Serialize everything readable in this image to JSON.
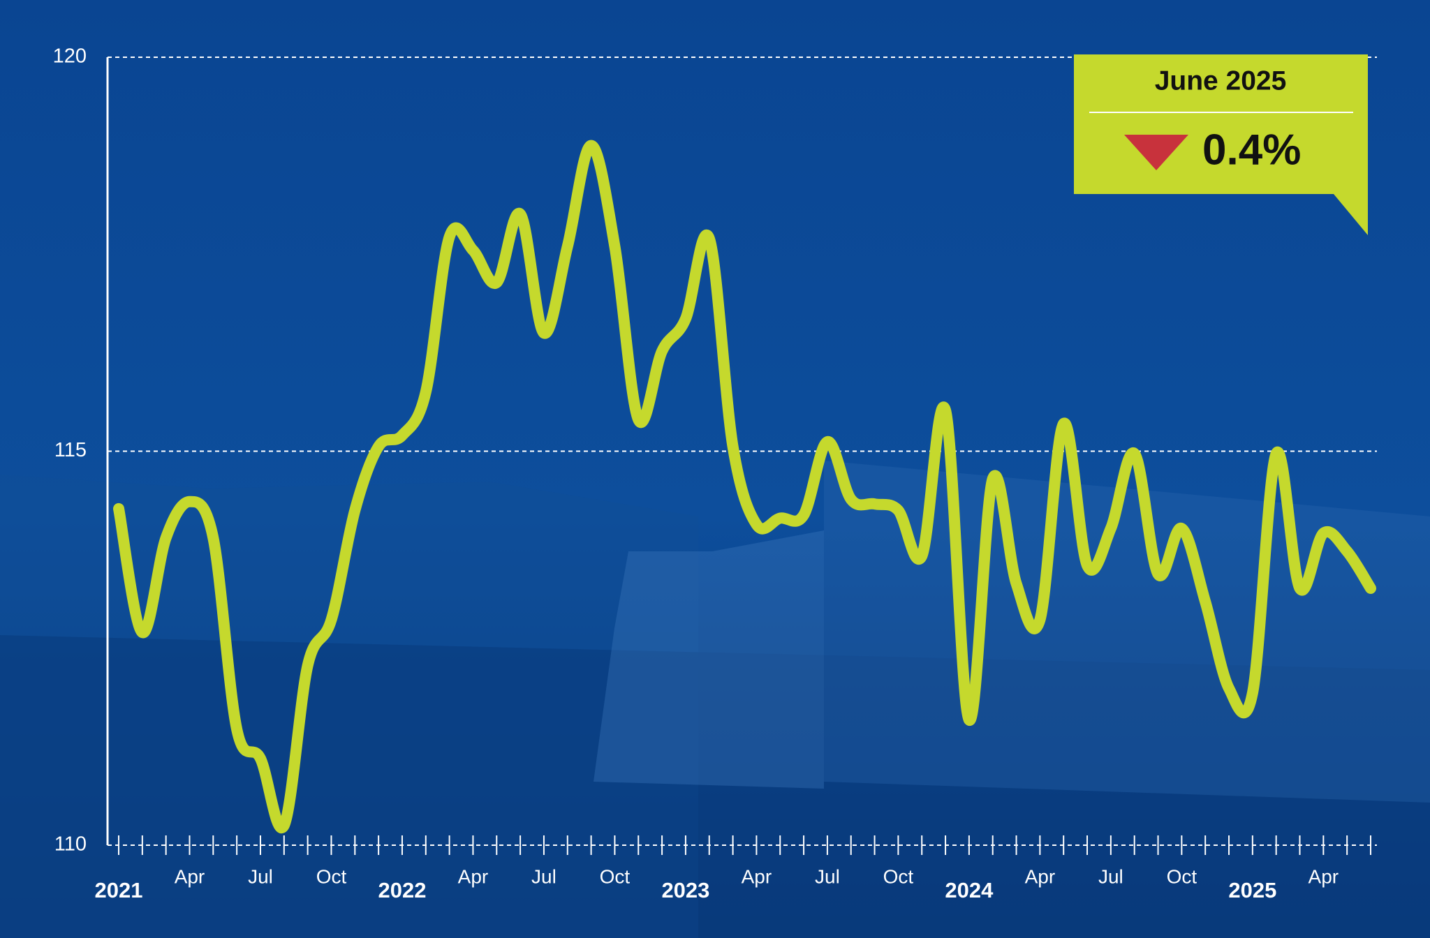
{
  "chart_data": {
    "type": "line",
    "categories": [
      "2021",
      null,
      null,
      "Apr",
      null,
      null,
      "Jul",
      null,
      null,
      "Oct",
      null,
      null,
      "2022",
      null,
      null,
      "Apr",
      null,
      null,
      "Jul",
      null,
      null,
      "Oct",
      null,
      null,
      "2023",
      null,
      null,
      "Apr",
      null,
      null,
      "Jul",
      null,
      null,
      "Oct",
      null,
      null,
      "2024",
      null,
      null,
      "Apr",
      null,
      null,
      "Jul",
      null,
      null,
      "Oct",
      null,
      null,
      "2025",
      null,
      null,
      "Apr",
      null,
      null
    ],
    "series": [
      {
        "color": "#c5d92d",
        "values": [
          114.27,
          112.7,
          113.9,
          114.36,
          113.9,
          111.47,
          111.1,
          110.25,
          112.28,
          112.86,
          114.25,
          115.06,
          115.2,
          115.75,
          117.72,
          117.55,
          117.14,
          118.01,
          116.5,
          117.6,
          118.88,
          117.6,
          115.4,
          116.27,
          116.68,
          117.7,
          115.06,
          114.07,
          114.15,
          114.19,
          115.12,
          114.39,
          114.33,
          114.25,
          113.67,
          115.52,
          111.59,
          114.65,
          113.32,
          112.86,
          115.35,
          113.55,
          114.02,
          114.97,
          113.44,
          114.02,
          113.09,
          111.99,
          111.93,
          114.97,
          113.26,
          113.96,
          113.73,
          113.26
        ]
      }
    ],
    "ylim": [
      110,
      120
    ],
    "yticks": [
      110,
      115,
      120
    ],
    "grid": true,
    "annotation": {
      "title": "June 2025",
      "value": "0.4%"
    }
  }
}
